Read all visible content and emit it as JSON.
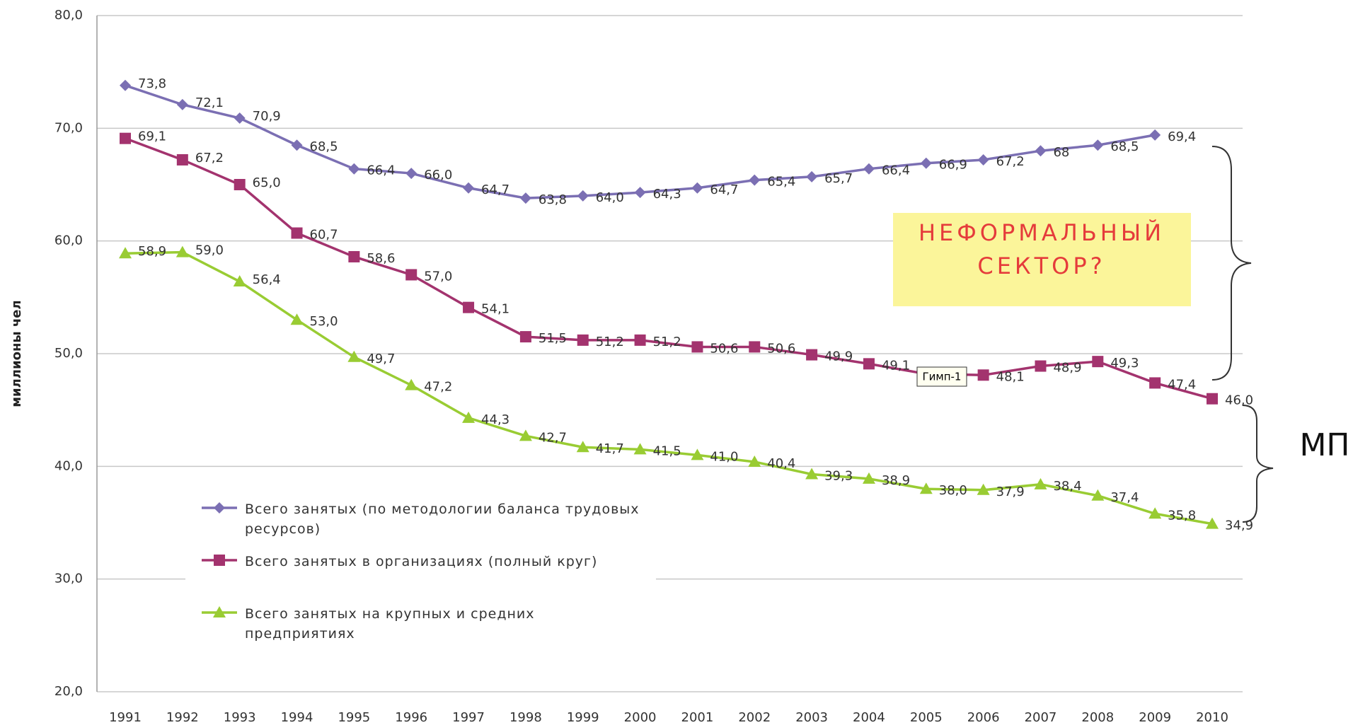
{
  "chart_data": {
    "type": "line",
    "y_label": "миллионы чел",
    "categories": [
      "1991",
      "1992",
      "1993",
      "1994",
      "1995",
      "1996",
      "1997",
      "1998",
      "1999",
      "2000",
      "2001",
      "2002",
      "2003",
      "2004",
      "2005",
      "2006",
      "2007",
      "2008",
      "2009",
      "2010"
    ],
    "ylim": [
      20,
      80
    ],
    "yticks": [
      {
        "value": 20,
        "label": "20,0"
      },
      {
        "value": 30,
        "label": "30,0"
      },
      {
        "value": 40,
        "label": "40,0"
      },
      {
        "value": 50,
        "label": "50,0"
      },
      {
        "value": 60,
        "label": "60,0"
      },
      {
        "value": 70,
        "label": "70,0"
      },
      {
        "value": 80,
        "label": "80,0"
      }
    ],
    "grid": true,
    "series": [
      {
        "name": "Всего занятых (по методологии баланса трудовых ресурсов)",
        "color": "#7b6fb3",
        "marker": "diamond",
        "values": [
          73.8,
          72.1,
          70.9,
          68.5,
          66.4,
          66.0,
          64.7,
          63.8,
          64.0,
          64.3,
          64.7,
          65.4,
          65.7,
          66.4,
          66.9,
          67.2,
          68,
          68.5,
          69.4,
          null
        ],
        "value_labels": [
          "73,8",
          "72,1",
          "70,9",
          "68,5",
          "66,4",
          "66,0",
          "64,7",
          "63,8",
          "64,0",
          "64,3",
          "64,7",
          "65,4",
          "65,7",
          "66,4",
          "66,9",
          "67,2",
          "68",
          "68,5",
          "69,4",
          null
        ]
      },
      {
        "name": "Всего занятых в организациях (полный круг)",
        "color": "#a3336e",
        "marker": "square",
        "values": [
          69.1,
          67.2,
          65.0,
          60.7,
          58.6,
          57.0,
          54.1,
          51.5,
          51.2,
          51.2,
          50.6,
          50.6,
          49.9,
          49.1,
          48.2,
          48.1,
          48.9,
          49.3,
          47.4,
          46.0
        ],
        "value_labels": [
          "69,1",
          "67,2",
          "65,0",
          "60,7",
          "58,6",
          "57,0",
          "54,1",
          "51,5",
          "51,2",
          "51,2",
          "50,6",
          "50,6",
          "49,9",
          "49,1",
          "48,2",
          "48,1",
          "48,9",
          "49,3",
          "47,4",
          "46,0"
        ]
      },
      {
        "name": "Всего занятых на крупных и средних предприятиях",
        "color": "#99cc33",
        "marker": "triangle",
        "values": [
          58.9,
          59.0,
          56.4,
          53.0,
          49.7,
          47.2,
          44.3,
          42.7,
          41.7,
          41.5,
          41.0,
          40.4,
          39.3,
          38.9,
          38.0,
          37.9,
          38.4,
          37.4,
          35.8,
          34.9
        ],
        "value_labels": [
          "58,9",
          "59,0",
          "56,4",
          "53,0",
          "49,7",
          "47,2",
          "44,3",
          "42,7",
          "41,7",
          "41,5",
          "41,0",
          "40,4",
          "39,3",
          "38,9",
          "38,0",
          "37,9",
          "38,4",
          "37,4",
          "35,8",
          "34,9"
        ]
      }
    ],
    "legend": "lower-left",
    "annotations": {
      "informal_sector": [
        "НЕФОРМАЛЬНЫЙ",
        "СЕКТОР?"
      ],
      "small_business": "МП",
      "tooltip": "Гимп-1"
    }
  }
}
